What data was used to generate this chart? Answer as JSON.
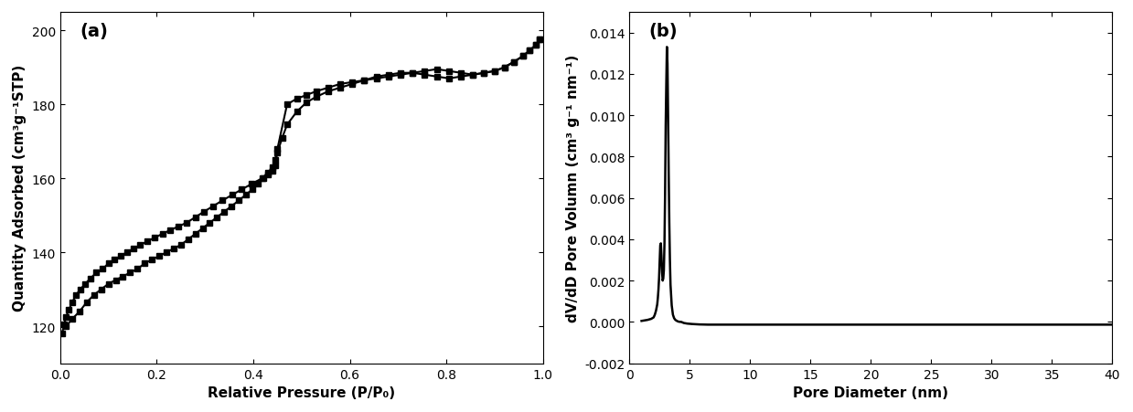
{
  "panel_a": {
    "label": "(a)",
    "xlabel": "Relative Pressure (P/P₀)",
    "ylabel": "Quantity Adsorbed (cm³g⁻¹STP)",
    "xlim": [
      0.0,
      1.0
    ],
    "ylim": [
      110,
      205
    ],
    "yticks": [
      120,
      140,
      160,
      180,
      200
    ],
    "xticks": [
      0.0,
      0.2,
      0.4,
      0.6,
      0.8,
      1.0
    ],
    "adsorption_x": [
      0.004,
      0.008,
      0.012,
      0.018,
      0.025,
      0.033,
      0.042,
      0.052,
      0.063,
      0.075,
      0.088,
      0.1,
      0.112,
      0.125,
      0.138,
      0.152,
      0.166,
      0.181,
      0.196,
      0.212,
      0.228,
      0.245,
      0.262,
      0.28,
      0.298,
      0.317,
      0.336,
      0.356,
      0.376,
      0.397,
      0.418,
      0.43,
      0.44,
      0.445,
      0.45,
      0.47,
      0.49,
      0.51,
      0.53,
      0.555,
      0.58,
      0.605,
      0.63,
      0.655,
      0.68,
      0.705,
      0.73,
      0.755,
      0.78,
      0.805,
      0.83,
      0.855,
      0.878,
      0.9,
      0.92,
      0.94,
      0.958,
      0.972,
      0.985,
      0.993
    ],
    "adsorption_y": [
      118.0,
      120.5,
      122.5,
      124.5,
      126.5,
      128.5,
      130.0,
      131.5,
      133.0,
      134.5,
      135.5,
      137.0,
      138.0,
      139.0,
      140.0,
      141.0,
      142.0,
      143.0,
      144.0,
      145.0,
      146.0,
      147.0,
      148.0,
      149.5,
      151.0,
      152.5,
      154.0,
      155.5,
      157.0,
      158.5,
      160.0,
      161.5,
      163.0,
      165.0,
      168.0,
      180.0,
      181.5,
      182.5,
      183.5,
      184.5,
      185.5,
      186.0,
      186.5,
      187.0,
      187.5,
      188.0,
      188.5,
      189.0,
      189.5,
      189.0,
      188.5,
      188.0,
      188.5,
      189.0,
      190.0,
      191.5,
      193.0,
      194.5,
      196.0,
      197.5
    ],
    "desorption_x": [
      0.993,
      0.985,
      0.972,
      0.958,
      0.94,
      0.92,
      0.9,
      0.878,
      0.855,
      0.83,
      0.805,
      0.78,
      0.755,
      0.73,
      0.705,
      0.68,
      0.655,
      0.63,
      0.605,
      0.58,
      0.555,
      0.53,
      0.51,
      0.49,
      0.47,
      0.46,
      0.45,
      0.445,
      0.44,
      0.43,
      0.42,
      0.41,
      0.398,
      0.384,
      0.37,
      0.355,
      0.34,
      0.325,
      0.31,
      0.295,
      0.28,
      0.265,
      0.25,
      0.235,
      0.22,
      0.205,
      0.19,
      0.175,
      0.16,
      0.145,
      0.13,
      0.115,
      0.1,
      0.085,
      0.07,
      0.055,
      0.04,
      0.025,
      0.012
    ],
    "desorption_y": [
      197.5,
      196.0,
      194.5,
      193.0,
      191.5,
      190.0,
      189.0,
      188.5,
      188.0,
      187.5,
      187.0,
      187.5,
      188.0,
      188.5,
      188.5,
      188.0,
      187.5,
      186.5,
      185.5,
      184.5,
      183.5,
      182.0,
      180.5,
      178.0,
      174.5,
      171.0,
      167.0,
      163.5,
      162.0,
      161.0,
      160.0,
      158.5,
      157.0,
      155.5,
      154.0,
      152.5,
      151.0,
      149.5,
      148.0,
      146.5,
      145.0,
      143.5,
      142.0,
      141.0,
      140.0,
      139.0,
      138.0,
      137.0,
      135.5,
      134.5,
      133.5,
      132.5,
      131.5,
      130.0,
      128.5,
      126.5,
      124.0,
      122.0,
      120.0
    ]
  },
  "panel_b": {
    "label": "(b)",
    "xlabel": "Pore Diameter (nm)",
    "ylabel": "dV/dD Pore Volumn (cm³ g⁻¹ nm⁻¹)",
    "xlim": [
      0,
      40
    ],
    "ylim": [
      -0.002,
      0.015
    ],
    "yticks": [
      -0.002,
      0.0,
      0.002,
      0.004,
      0.006,
      0.008,
      0.01,
      0.012,
      0.014
    ],
    "xticks": [
      0,
      5,
      10,
      15,
      20,
      25,
      30,
      35,
      40
    ],
    "pore_x": [
      1.0,
      1.5,
      1.8,
      2.0,
      2.1,
      2.2,
      2.3,
      2.35,
      2.4,
      2.45,
      2.5,
      2.55,
      2.6,
      2.65,
      2.7,
      2.75,
      2.8,
      2.85,
      2.9,
      2.95,
      3.0,
      3.05,
      3.1,
      3.15,
      3.2,
      3.25,
      3.3,
      3.35,
      3.4,
      3.5,
      3.6,
      3.7,
      3.8,
      3.9,
      4.0,
      4.1,
      4.2,
      4.3,
      4.5,
      4.8,
      5.2,
      5.8,
      6.5,
      7.5,
      9.0,
      11.0,
      14.0,
      18.0,
      25.0,
      32.0,
      40.0
    ],
    "pore_y": [
      5e-05,
      0.0001,
      0.00015,
      0.00022,
      0.00035,
      0.00055,
      0.00085,
      0.00115,
      0.00155,
      0.0021,
      0.0029,
      0.0037,
      0.0038,
      0.0032,
      0.0024,
      0.002,
      0.0021,
      0.0025,
      0.0038,
      0.0062,
      0.0095,
      0.0115,
      0.0133,
      0.0125,
      0.01,
      0.0072,
      0.0048,
      0.003,
      0.0018,
      0.0008,
      0.00035,
      0.00018,
      0.0001,
      6e-05,
      3e-05,
      1e-05,
      5e-06,
      0.0,
      -5e-05,
      -8e-05,
      -0.0001,
      -0.00012,
      -0.00013,
      -0.00013,
      -0.00013,
      -0.00013,
      -0.00013,
      -0.00013,
      -0.00013,
      -0.00013,
      -0.00013
    ]
  },
  "line_color": "#000000",
  "marker": "s",
  "markersize": 4,
  "linewidth": 1.5,
  "background_color": "#ffffff",
  "label_fontsize": 11,
  "tick_fontsize": 10,
  "panel_label_fontsize": 14
}
